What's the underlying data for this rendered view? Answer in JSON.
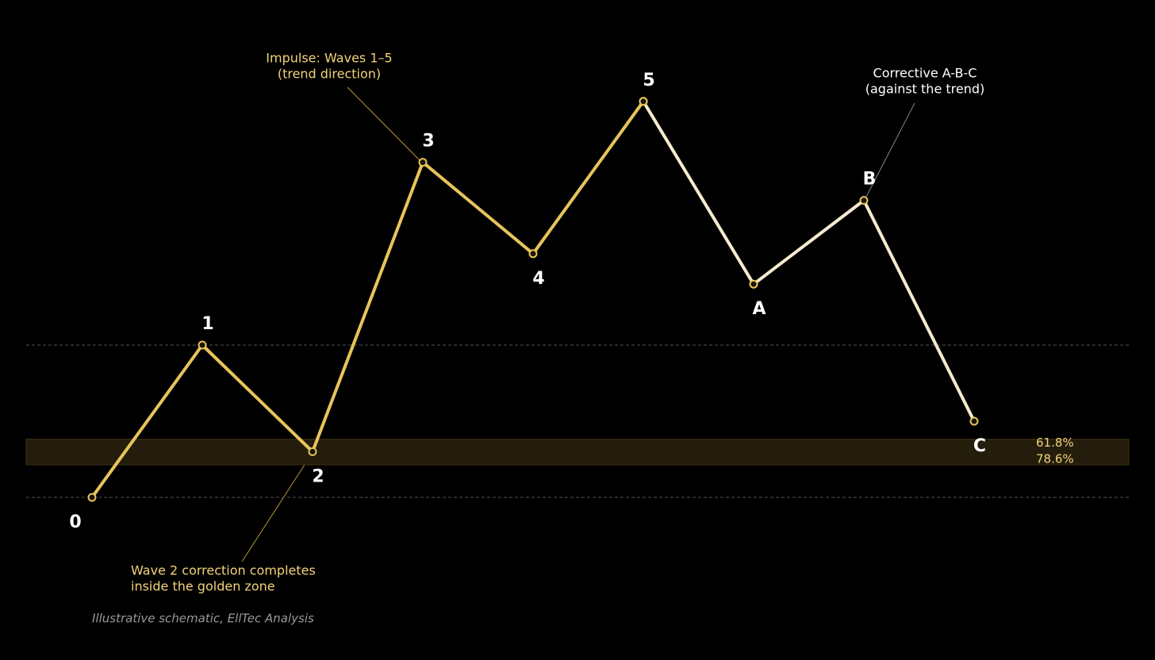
{
  "chart_data": {
    "type": "line",
    "categories": [
      "0",
      "1",
      "2",
      "3",
      "4",
      "5",
      "A",
      "B",
      "C"
    ],
    "series": [
      {
        "color": "#e8c55a",
        "values": [
          0,
          100,
          30,
          220,
          160,
          260,
          null,
          null,
          null
        ]
      },
      {
        "color": "#f5ebcf",
        "values": [
          null,
          null,
          null,
          null,
          null,
          260,
          140,
          195,
          50
        ]
      }
    ],
    "ylim": [
      -100,
      320
    ],
    "reference_lines": [
      0,
      100
    ],
    "zone": [
      {
        "value": 61.8,
        "label": "61.8%"
      },
      {
        "value": 78.6,
        "label": "78.6%"
      }
    ],
    "annotations": [
      {
        "lines": [
          "Impulse: Waves 1–5",
          "(trend direction)"
        ],
        "color": "#f2d27a"
      },
      {
        "lines": [
          "Corrective A-B-C",
          "(against the trend)"
        ],
        "color": "#ffffff"
      },
      {
        "lines": [
          "Wave 2 correction completes",
          "inside the golden zone"
        ],
        "color": "#f2d27a"
      }
    ],
    "footnote": "Illustrative schematic, EllTec Analysis"
  }
}
